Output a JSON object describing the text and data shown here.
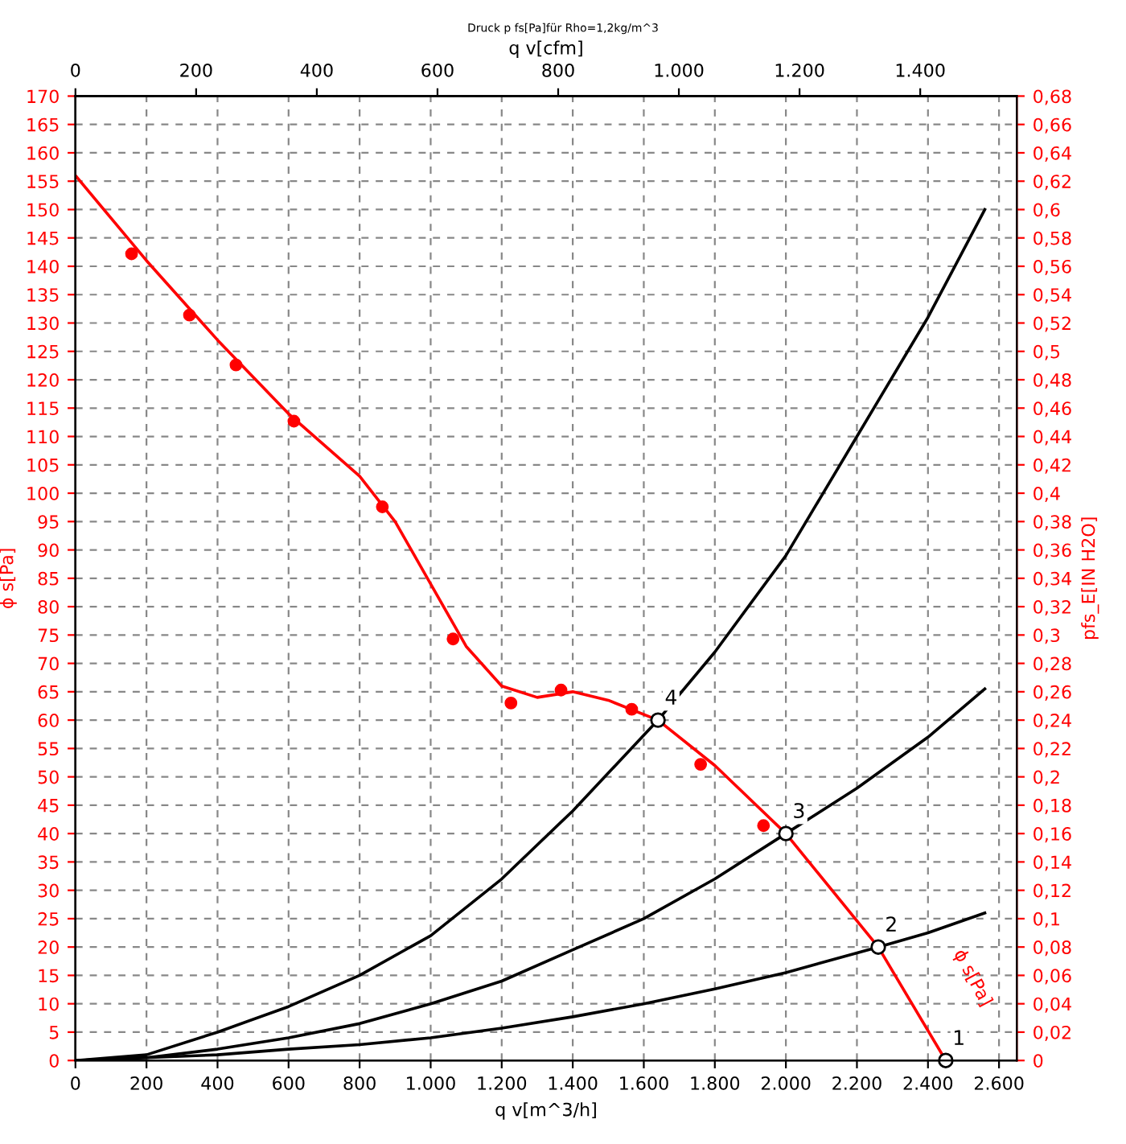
{
  "chart_data": {
    "type": "line",
    "title": "Druck p fs[Pa]für Rho=1,2kg/m^3",
    "xlabel": "q v[m^3/h]",
    "ylabel": "ϕ s[Pa]",
    "y2label": "pfs_E[IN H2O]",
    "x2label": "q v[cfm]",
    "xlim": [
      0,
      2650
    ],
    "xticks": [
      0,
      200,
      400,
      600,
      800,
      {
        "value": 1000,
        "label": "1.000"
      },
      {
        "value": 1200,
        "label": "1.200"
      },
      {
        "value": 1400,
        "label": "1.400"
      },
      {
        "value": 1600,
        "label": "1.600"
      },
      {
        "value": 1800,
        "label": "1.800"
      },
      {
        "value": 2000,
        "label": "2.000"
      },
      {
        "value": 2200,
        "label": "2.200"
      },
      {
        "value": 2400,
        "label": "2.400"
      },
      {
        "value": 2600,
        "label": "2.600"
      }
    ],
    "x2lim": [
      0,
      1560
    ],
    "x2ticks": [
      0,
      200,
      400,
      600,
      800,
      {
        "value": 1000,
        "label": "1.000"
      },
      {
        "value": 1200,
        "label": "1.200"
      },
      {
        "value": 1400,
        "label": "1.400"
      }
    ],
    "ylim": [
      0,
      170
    ],
    "yticks": [
      0,
      5,
      10,
      15,
      20,
      25,
      30,
      35,
      40,
      45,
      50,
      55,
      60,
      65,
      70,
      75,
      80,
      85,
      90,
      95,
      100,
      105,
      110,
      115,
      120,
      125,
      130,
      135,
      140,
      145,
      150,
      155,
      160,
      165,
      170
    ],
    "y2lim": [
      0,
      0.68
    ],
    "y2ticks": [
      0,
      {
        "value": 0.02,
        "label": "0,02"
      },
      {
        "value": 0.04,
        "label": "0,04"
      },
      {
        "value": 0.06,
        "label": "0,06"
      },
      {
        "value": 0.08,
        "label": "0,08"
      },
      {
        "value": 0.1,
        "label": "0,1"
      },
      {
        "value": 0.12,
        "label": "0,12"
      },
      {
        "value": 0.14,
        "label": "0,14"
      },
      {
        "value": 0.16,
        "label": "0,16"
      },
      {
        "value": 0.18,
        "label": "0,18"
      },
      {
        "value": 0.2,
        "label": "0,2"
      },
      {
        "value": 0.22,
        "label": "0,22"
      },
      {
        "value": 0.24,
        "label": "0,24"
      },
      {
        "value": 0.26,
        "label": "0,26"
      },
      {
        "value": 0.28,
        "label": "0,28"
      },
      {
        "value": 0.3,
        "label": "0,3"
      },
      {
        "value": 0.32,
        "label": "0,32"
      },
      {
        "value": 0.34,
        "label": "0,34"
      },
      {
        "value": 0.36,
        "label": "0,36"
      },
      {
        "value": 0.38,
        "label": "0,38"
      },
      {
        "value": 0.4,
        "label": "0,4"
      },
      {
        "value": 0.42,
        "label": "0,42"
      },
      {
        "value": 0.44,
        "label": "0,44"
      },
      {
        "value": 0.46,
        "label": "0,46"
      },
      {
        "value": 0.48,
        "label": "0,48"
      },
      {
        "value": 0.5,
        "label": "0,5"
      },
      {
        "value": 0.52,
        "label": "0,52"
      },
      {
        "value": 0.54,
        "label": "0,54"
      },
      {
        "value": 0.56,
        "label": "0,56"
      },
      {
        "value": 0.58,
        "label": "0,58"
      },
      {
        "value": 0.6,
        "label": "0,6"
      },
      {
        "value": 0.62,
        "label": "0,62"
      },
      {
        "value": 0.64,
        "label": "0,64"
      },
      {
        "value": 0.66,
        "label": "0,66"
      },
      {
        "value": 0.68,
        "label": "0,68"
      }
    ],
    "grid": true,
    "series": [
      {
        "color": "#000000",
        "x": [
          0,
          200,
          400,
          600,
          800,
          1000,
          1200,
          1400,
          1640,
          1800,
          2000,
          2200,
          2400,
          2560
        ],
        "values": [
          0,
          1,
          5,
          9.5,
          15,
          22,
          32,
          44,
          60,
          72,
          89,
          110,
          131,
          150
        ]
      },
      {
        "color": "#000000",
        "x": [
          0,
          200,
          400,
          600,
          800,
          1000,
          1200,
          1400,
          1600,
          1800,
          2000,
          2200,
          2400,
          2560
        ],
        "values": [
          0,
          0.5,
          2,
          4,
          6.5,
          10,
          14,
          19.5,
          25,
          32,
          40,
          48,
          57,
          65.5
        ]
      },
      {
        "color": "#000000",
        "x": [
          0,
          400,
          600,
          800,
          1000,
          1200,
          1400,
          1600,
          1800,
          2000,
          2260,
          2400,
          2560
        ],
        "values": [
          0,
          1,
          2,
          2.8,
          4,
          5.7,
          7.7,
          10,
          12.6,
          15.5,
          20,
          22.5,
          26
        ]
      },
      {
        "name": "ϕ s[Pa]",
        "color": "#ff0000",
        "x": [
          0,
          200,
          400,
          600,
          800,
          900,
          1000,
          1100,
          1200,
          1300,
          1400,
          1500,
          1640,
          1800,
          2000,
          2260,
          2450
        ],
        "values": [
          156,
          141,
          127,
          114,
          103,
          95,
          84,
          73,
          66,
          64,
          65,
          63.5,
          60,
          52,
          40,
          20,
          0
        ]
      },
      {
        "type": "scatter",
        "marker": "circle",
        "color": "#ff0000",
        "x": [
          158,
          321,
          452,
          615,
          864,
          1063,
          1226,
          1367,
          1566,
          1760,
          1937
        ],
        "values": [
          142.2,
          131.4,
          122.6,
          112.7,
          97.6,
          74.3,
          63,
          65.3,
          61.9,
          52.2,
          41.4
        ]
      },
      {
        "type": "scatter",
        "marker": "circle",
        "color": "#000000",
        "x": [
          2450,
          2260,
          2000,
          1640
        ],
        "values": [
          0,
          20,
          40,
          60
        ]
      }
    ],
    "annotations": [
      {
        "text": "1",
        "x": 2450,
        "y": 0
      },
      {
        "text": "2",
        "x": 2260,
        "y": 20
      },
      {
        "text": "3",
        "x": 2000,
        "y": 40
      },
      {
        "text": "4",
        "x": 1640,
        "y": 60
      }
    ]
  }
}
